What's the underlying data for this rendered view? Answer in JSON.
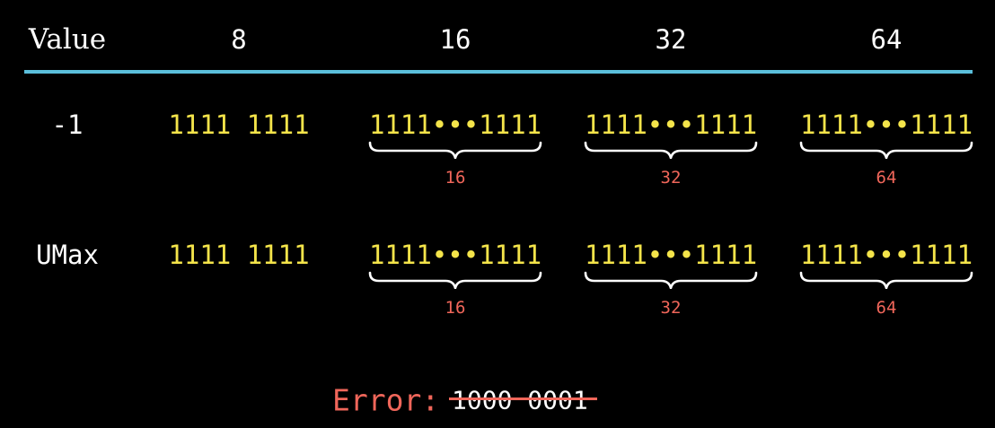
{
  "header": {
    "label": "Value",
    "columns": [
      "8",
      "16",
      "32",
      "64"
    ]
  },
  "rows": [
    {
      "label": "-1",
      "cells": [
        {
          "bits": "1111 1111",
          "width_label": ""
        },
        {
          "bits": "1111•••1111",
          "width_label": "16"
        },
        {
          "bits": "1111•••1111",
          "width_label": "32"
        },
        {
          "bits": "1111•••1111",
          "width_label": "64"
        }
      ]
    },
    {
      "label": "UMax",
      "cells": [
        {
          "bits": "1111 1111",
          "width_label": ""
        },
        {
          "bits": "1111•••1111",
          "width_label": "16"
        },
        {
          "bits": "1111•••1111",
          "width_label": "32"
        },
        {
          "bits": "1111•••1111",
          "width_label": "64"
        }
      ]
    }
  ],
  "error": {
    "label": "Error:",
    "value": "1000 0001"
  },
  "colors": {
    "background": "#000000",
    "text": "#ffffff",
    "rule": "#5bbfdc",
    "bits": "#f4e44a",
    "annotation": "#f0665a"
  }
}
